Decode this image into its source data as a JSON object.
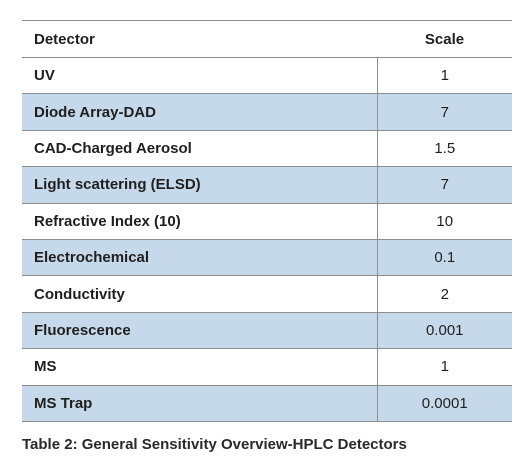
{
  "table": {
    "headers": {
      "detector": "Detector",
      "scale": "Scale"
    },
    "rows": [
      {
        "detector": "UV",
        "scale": "1"
      },
      {
        "detector": "Diode Array-DAD",
        "scale": "7"
      },
      {
        "detector": "CAD-Charged Aerosol",
        "scale": "1.5"
      },
      {
        "detector": "Light scattering (ELSD)",
        "scale": "7"
      },
      {
        "detector": "Refractive Index (10)",
        "scale": "10"
      },
      {
        "detector": "Electrochemical",
        "scale": "0.1"
      },
      {
        "detector": "Conductivity",
        "scale": "2"
      },
      {
        "detector": "Fluorescence",
        "scale": "0.001"
      },
      {
        "detector": "MS",
        "scale": "1"
      },
      {
        "detector": "MS Trap",
        "scale": "0.0001"
      }
    ],
    "row_alt_color": "#c6d9ea",
    "border_color": "#8d8d8d"
  },
  "caption": "Table 2: General Sensitivity Overview-HPLC Detectors"
}
